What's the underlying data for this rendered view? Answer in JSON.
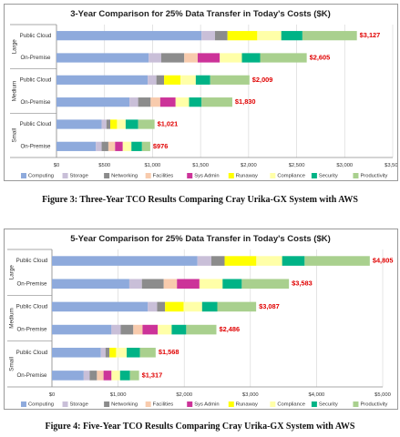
{
  "colors": {
    "Computing": "#8eaadc",
    "Storage": "#c9bfd8",
    "Networking": "#8c8c8c",
    "Facilities": "#f8cbad",
    "Sys Admin": "#cc3399",
    "Runaway": "#ffff00",
    "Compliance": "#ffffa8",
    "Security": "#00b386",
    "Productivity": "#a9d08e",
    "total_label": "#e00000"
  },
  "captions": {
    "figure3": "Figure 3: Three-Year TCO Results Comparing Cray Urika-GX System with AWS",
    "figure4": "Figure 4: Five-Year TCO Results Comparing Cray Urika-GX System with AWS"
  },
  "chart_data": [
    {
      "type": "bar",
      "orientation": "horizontal",
      "stacked": true,
      "title": "3-Year Comparison for 25% Data Transfer in Today's Costs ($K)",
      "groups": [
        "Large",
        "Medium",
        "Small"
      ],
      "categories": [
        "Public Cloud",
        "On-Premise",
        "Public Cloud",
        "On-Premise",
        "Public Cloud",
        "On-Premise"
      ],
      "category_groups": [
        "Large",
        "Large",
        "Medium",
        "Medium",
        "Small",
        "Small"
      ],
      "x_ticks": [
        "$0",
        "$500",
        "$1,000",
        "$1,500",
        "$2,000",
        "$2,500",
        "$3,000",
        "$3,500"
      ],
      "xlim": [
        0,
        3500
      ],
      "totals": [
        "$3,127",
        "$2,605",
        "$2,009",
        "$1,830",
        "$1,021",
        "$976"
      ],
      "legend_position": "bottom",
      "series": [
        {
          "name": "Computing",
          "values": [
            1510,
            960,
            950,
            760,
            470,
            410
          ]
        },
        {
          "name": "Storage",
          "values": [
            140,
            130,
            90,
            90,
            50,
            60
          ]
        },
        {
          "name": "Networking",
          "values": [
            130,
            240,
            80,
            130,
            40,
            70
          ]
        },
        {
          "name": "Facilities",
          "values": [
            0,
            140,
            0,
            100,
            0,
            70
          ]
        },
        {
          "name": "Sys Admin",
          "values": [
            0,
            230,
            0,
            160,
            0,
            80
          ]
        },
        {
          "name": "Runaway",
          "values": [
            310,
            0,
            170,
            0,
            70,
            0
          ]
        },
        {
          "name": "Compliance",
          "values": [
            250,
            230,
            160,
            140,
            90,
            90
          ]
        },
        {
          "name": "Security",
          "values": [
            220,
            190,
            150,
            130,
            130,
            110
          ]
        },
        {
          "name": "Productivity",
          "values": [
            567,
            485,
            409,
            320,
            171,
            86
          ]
        }
      ]
    },
    {
      "type": "bar",
      "orientation": "horizontal",
      "stacked": true,
      "title": "5-Year Comparison for 25% Data Transfer in Today's Costs ($K)",
      "groups": [
        "Large",
        "Medium",
        "Small"
      ],
      "categories": [
        "Public Cloud",
        "On-Premise",
        "Public Cloud",
        "On-Premise",
        "Public Cloud",
        "On-Premise"
      ],
      "category_groups": [
        "Large",
        "Large",
        "Medium",
        "Medium",
        "Small",
        "Small"
      ],
      "x_ticks": [
        "$0",
        "$1,000",
        "$2,000",
        "$3,000",
        "$4,000",
        "$5,000"
      ],
      "xlim": [
        0,
        5000
      ],
      "totals": [
        "$4,805",
        "$3,583",
        "$3,087",
        "$2,486",
        "$1,568",
        "$1,317"
      ],
      "legend_position": "bottom",
      "series": [
        {
          "name": "Computing",
          "values": [
            2200,
            1170,
            1450,
            900,
            740,
            480
          ]
        },
        {
          "name": "Storage",
          "values": [
            210,
            190,
            140,
            140,
            70,
            90
          ]
        },
        {
          "name": "Networking",
          "values": [
            200,
            330,
            120,
            190,
            60,
            110
          ]
        },
        {
          "name": "Facilities",
          "values": [
            0,
            200,
            0,
            140,
            0,
            100
          ]
        },
        {
          "name": "Sys Admin",
          "values": [
            0,
            340,
            0,
            230,
            0,
            120
          ]
        },
        {
          "name": "Runaway",
          "values": [
            480,
            0,
            280,
            0,
            100,
            0
          ]
        },
        {
          "name": "Compliance",
          "values": [
            390,
            350,
            280,
            210,
            160,
            130
          ]
        },
        {
          "name": "Security",
          "values": [
            340,
            290,
            230,
            220,
            200,
            150
          ]
        },
        {
          "name": "Productivity",
          "values": [
            985,
            713,
            587,
            456,
            238,
            137
          ]
        }
      ]
    }
  ]
}
